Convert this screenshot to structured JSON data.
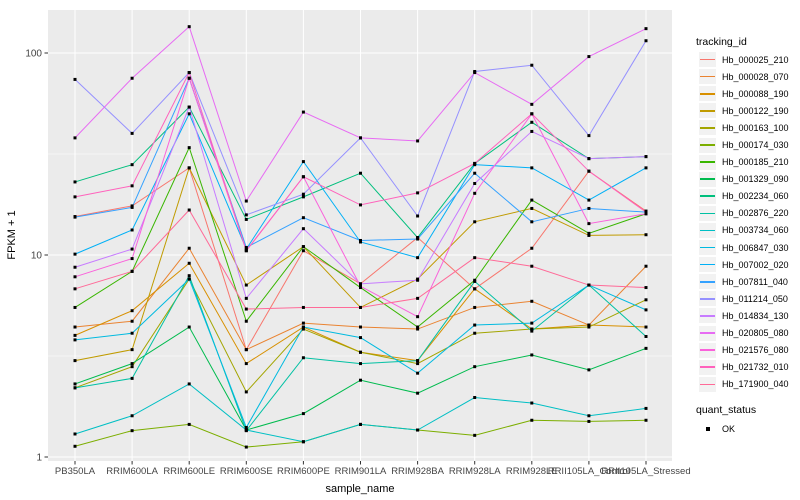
{
  "chart_data": {
    "type": "line",
    "title": "",
    "xlabel": "sample_name",
    "ylabel": "FPKM + 1",
    "y_scale": "log10",
    "ylim": [
      1,
      160
    ],
    "y_ticks": [
      1,
      10,
      100
    ],
    "y_minor_ticks": [
      3.1623,
      31.623
    ],
    "grid": true,
    "legend_position": "right",
    "panel_bg": "#EBEBEB",
    "grid_color": "#FFFFFF",
    "tick_color": "#333333",
    "tick_label_color": "#444444",
    "point_marker": "black-square",
    "point_color": "#000000",
    "x_categories": [
      "PB350LA",
      "RRIM600LA",
      "RRIM600LE",
      "RRIM600SE",
      "RRIM600PE",
      "RRIM901LA",
      "RRIM928BA",
      "RRIM928LA",
      "RRIM928LE",
      "RRII105LA_Control",
      "RRII105LA_Stressed"
    ],
    "legend_title": "tracking_id",
    "legend2_title": "quant_status",
    "legend2_items": [
      {
        "label": "OK",
        "marker": "black-square"
      }
    ],
    "series": [
      {
        "name": "Hb_000025_210",
        "color": "#F8766D",
        "values": [
          15.5,
          17.5,
          27,
          3.4,
          10.5,
          7.2,
          12.2,
          6.8,
          10.8,
          26,
          16.5
        ]
      },
      {
        "name": "Hb_000028_070",
        "color": "#EA8331",
        "values": [
          4.4,
          4.7,
          10.8,
          3.4,
          4.6,
          4.4,
          4.3,
          5.5,
          5.9,
          4.5,
          8.8
        ]
      },
      {
        "name": "Hb_000088_190",
        "color": "#D89000",
        "values": [
          4.0,
          5.3,
          9.1,
          2.9,
          4.4,
          3.3,
          3.0,
          6.8,
          4.3,
          4.5,
          4.4
        ]
      },
      {
        "name": "Hb_000122_190",
        "color": "#C09B00",
        "values": [
          3.0,
          3.4,
          27,
          7.1,
          11,
          5.5,
          7.6,
          14.6,
          17,
          12.5,
          12.6
        ]
      },
      {
        "name": "Hb_000163_100",
        "color": "#A3A500",
        "values": [
          2.2,
          2.8,
          7.6,
          2.1,
          4.3,
          3.3,
          2.9,
          4.1,
          4.3,
          4.4,
          6.0
        ]
      },
      {
        "name": "Hb_000174_030",
        "color": "#7CAE00",
        "values": [
          1.13,
          1.35,
          1.45,
          1.12,
          1.19,
          1.45,
          1.36,
          1.28,
          1.52,
          1.5,
          1.52
        ]
      },
      {
        "name": "Hb_000185_210",
        "color": "#39B600",
        "values": [
          5.5,
          8.3,
          34,
          4.7,
          11,
          6.9,
          4.4,
          7.5,
          18.7,
          12.8,
          16
        ]
      },
      {
        "name": "Hb_001329_090",
        "color": "#00BB4E",
        "values": [
          2.3,
          2.9,
          4.4,
          1.36,
          1.64,
          2.4,
          2.07,
          2.8,
          3.2,
          2.7,
          3.45
        ]
      },
      {
        "name": "Hb_002234_060",
        "color": "#00BF7D",
        "values": [
          23,
          28,
          54,
          15,
          19.4,
          25.4,
          12.2,
          28.4,
          45.4,
          30,
          30.7
        ]
      },
      {
        "name": "Hb_002876_220",
        "color": "#00C1A3",
        "values": [
          2.2,
          2.45,
          7.9,
          1.35,
          3.1,
          2.9,
          3.0,
          7.4,
          4.2,
          7.1,
          3.95
        ]
      },
      {
        "name": "Hb_003734_060",
        "color": "#00BFC4",
        "values": [
          1.3,
          1.6,
          2.3,
          1.36,
          1.19,
          1.45,
          1.36,
          1.97,
          1.85,
          1.6,
          1.74
        ]
      },
      {
        "name": "Hb_006847_030",
        "color": "#00BAE0",
        "values": [
          3.8,
          4.1,
          7.6,
          1.4,
          4.4,
          3.9,
          2.6,
          4.5,
          4.6,
          7.1,
          5.35
        ]
      },
      {
        "name": "Hb_007002_020",
        "color": "#00B0F6",
        "values": [
          10.1,
          13.3,
          50,
          10.7,
          29,
          11.6,
          9.7,
          28,
          27,
          18.7,
          27
        ]
      },
      {
        "name": "Hb_007811_040",
        "color": "#35A2FF",
        "values": [
          15.4,
          17.2,
          75,
          10.9,
          15.3,
          11.8,
          12.0,
          25.4,
          14.6,
          17,
          16.3
        ]
      },
      {
        "name": "Hb_011214_050",
        "color": "#9590FF",
        "values": [
          74,
          40,
          80,
          15.8,
          20,
          38,
          15.6,
          81,
          87,
          39,
          115
        ]
      },
      {
        "name": "Hb_014834_130",
        "color": "#C77CFF",
        "values": [
          8.7,
          10.7,
          54,
          6.1,
          13.5,
          7.2,
          7.5,
          22.6,
          40.9,
          30,
          30.7
        ]
      },
      {
        "name": "Hb_020805_080",
        "color": "#E76BF3",
        "values": [
          38,
          75,
          135,
          18.5,
          51,
          38,
          36.7,
          80,
          55.7,
          96,
          132
        ]
      },
      {
        "name": "Hb_021576_080",
        "color": "#FA62DB",
        "values": [
          7.8,
          9.6,
          75,
          10.5,
          24.4,
          7.0,
          4.95,
          20.2,
          50,
          14.3,
          16
        ]
      },
      {
        "name": "Hb_021732_010",
        "color": "#FF62BC",
        "values": [
          19.4,
          22,
          80,
          10.5,
          24.4,
          17.7,
          20.3,
          28.4,
          50,
          26,
          16.3
        ]
      },
      {
        "name": "Hb_171900_040",
        "color": "#FF6A98",
        "values": [
          6.8,
          8.3,
          16.7,
          5.4,
          5.5,
          5.5,
          6.1,
          9.7,
          8.8,
          7.1,
          6.9
        ]
      }
    ]
  }
}
